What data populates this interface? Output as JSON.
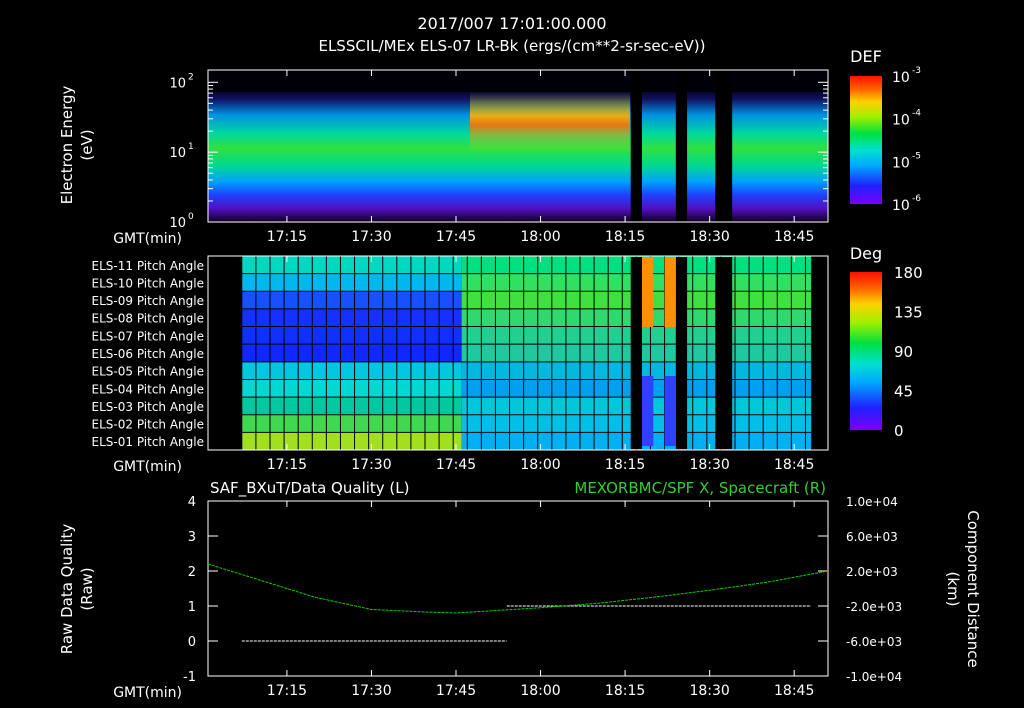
{
  "header": {
    "timestamp": "2017/007 17:01:00.000",
    "subtitle": "ELSSCIL/MEx ELS-07 LR-Bk   (ergs/(cm**2-sr-sec-eV))"
  },
  "time_axis": {
    "label": "GMT(min)",
    "ticks": [
      "17:15",
      "17:30",
      "17:45",
      "18:00",
      "18:15",
      "18:30",
      "18:45"
    ],
    "tick_minutes": [
      1035,
      1050,
      1065,
      1080,
      1095,
      1110,
      1125
    ],
    "range_minutes": [
      1021,
      1131
    ]
  },
  "chart_data": [
    {
      "type": "heatmap",
      "title": "ELSSCIL/MEx ELS-07 LR-Bk",
      "ylabel_lines": [
        "Electron Energy",
        "(eV)"
      ],
      "y_scale": "log",
      "ylim": [
        1,
        150
      ],
      "y_ticks": [
        {
          "value": 1,
          "base": "10",
          "exp": "0"
        },
        {
          "value": 10,
          "base": "10",
          "exp": "1"
        },
        {
          "value": 100,
          "base": "10",
          "exp": "2"
        }
      ],
      "colorbar": {
        "label": "DEF",
        "ticks": [
          {
            "base": "10",
            "exp": "-3"
          },
          {
            "base": "10",
            "exp": "-4"
          },
          {
            "base": "10",
            "exp": "-5"
          },
          {
            "base": "10",
            "exp": "-6"
          }
        ]
      },
      "data_gaps_minutes": [
        [
          1096,
          1098
        ],
        [
          1104,
          1106
        ],
        [
          1111,
          1114
        ]
      ]
    },
    {
      "type": "heatmap",
      "title": "Pitch Angle",
      "rows": [
        "ELS-11 Pitch Angle",
        "ELS-10 Pitch Angle",
        "ELS-09 Pitch Angle",
        "ELS-08 Pitch Angle",
        "ELS-07 Pitch Angle",
        "ELS-06 Pitch Angle",
        "ELS-05 Pitch Angle",
        "ELS-04 Pitch Angle",
        "ELS-03 Pitch Angle",
        "ELS-02 Pitch Angle",
        "ELS-01 Pitch Angle"
      ],
      "colorbar": {
        "label": "Deg",
        "ticks": [
          "180",
          "135",
          "90",
          "45",
          "0"
        ],
        "range": [
          0,
          180
        ]
      },
      "data_range_minutes": [
        1027,
        1128
      ],
      "data_gaps_minutes": [
        [
          1096,
          1098
        ],
        [
          1104,
          1106
        ],
        [
          1111,
          1114
        ]
      ]
    },
    {
      "type": "line",
      "title_left": "SAF_BXuT/Data Quality (L)",
      "title_right": "MEXORBMC/SPF X, Spacecraft (R)",
      "ylabel_left_lines": [
        "Raw Data Quality",
        "(Raw)"
      ],
      "ylabel_right_lines": [
        "Component Distance",
        "(km)"
      ],
      "ylim_left": [
        -1,
        4
      ],
      "yticks_left": [
        "4",
        "3",
        "2",
        "1",
        "0",
        "-1"
      ],
      "ylim_right": [
        -10000,
        10000
      ],
      "yticks_right": [
        "1.0e+04",
        "6.0e+03",
        "2.0e+03",
        "-2.0e+03",
        "-6.0e+03",
        "-1.0e+04"
      ],
      "series": [
        {
          "name": "Data Quality",
          "axis": "left",
          "color": "#ffffff",
          "segments": [
            {
              "x": [
                1027,
                1074
              ],
              "y": [
                0,
                0
              ]
            },
            {
              "x": [
                1074,
                1128
              ],
              "y": [
                1,
                1
              ]
            }
          ]
        },
        {
          "name": "SPF X, Spacecraft",
          "axis": "right",
          "color": "#00d000",
          "x": [
            1021,
            1030,
            1040,
            1050,
            1060,
            1065,
            1070,
            1080,
            1090,
            1100,
            1110,
            1120,
            1131
          ],
          "y": [
            2800,
            1000,
            -1000,
            -2400,
            -2700,
            -2800,
            -2600,
            -2200,
            -1700,
            -1000,
            -200,
            700,
            2000
          ]
        }
      ]
    }
  ]
}
